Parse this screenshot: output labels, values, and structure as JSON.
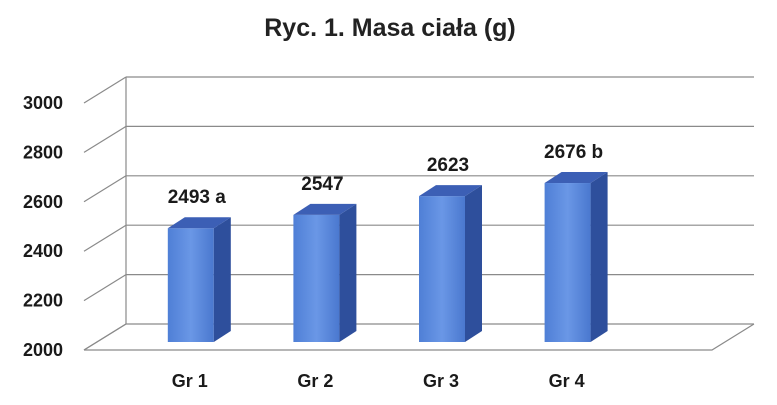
{
  "chart_data": {
    "type": "bar",
    "title": "Ryc. 1. Masa ciała (g)",
    "categories": [
      "Gr 1",
      "Gr 2",
      "Gr 3",
      "Gr 4"
    ],
    "values": [
      2493,
      2547,
      2623,
      2676
    ],
    "data_labels": [
      "2493 a",
      "2547",
      "2623",
      "2676 b"
    ],
    "ylim": [
      2000,
      3000
    ],
    "yticks": [
      2000,
      2200,
      2400,
      2600,
      2800,
      3000
    ],
    "grid": true,
    "style": "3d-column",
    "colors": {
      "bar_front": "#5a8ae0",
      "bar_side": "#2e4f9c",
      "bar_top": "#3c5fb5",
      "grid": "#8a8a8a"
    }
  }
}
